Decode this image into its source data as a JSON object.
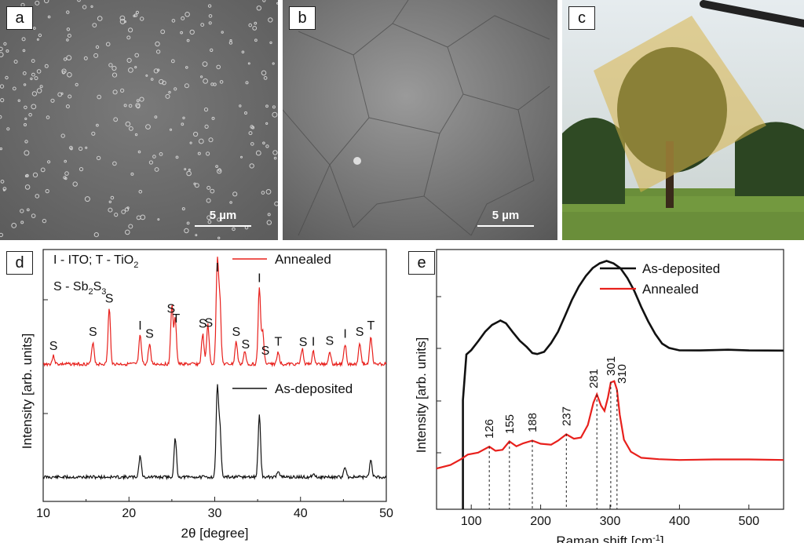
{
  "panels": {
    "a": {
      "label": "a",
      "scale_label": "5 µm"
    },
    "b": {
      "label": "b",
      "scale_label": "5 µm"
    },
    "c": {
      "label": "c"
    },
    "d": {
      "label": "d"
    },
    "e": {
      "label": "e"
    }
  },
  "chart_data": [
    {
      "type": "line",
      "panel": "d",
      "xlabel": "2θ [degree]",
      "ylabel": "Intensity [arb. units]",
      "xlim": [
        10,
        50
      ],
      "xticks": [
        10,
        20,
        30,
        40,
        50
      ],
      "legend_note_lines": [
        "I - ITO; T - TiO2",
        "S - Sb2S3"
      ],
      "series": [
        {
          "name": "Annealed",
          "color": "#e8201c",
          "peaks": [
            [
              11.2,
              0.08
            ],
            [
              15.8,
              0.22
            ],
            [
              17.7,
              0.55
            ],
            [
              21.3,
              0.28
            ],
            [
              22.4,
              0.2
            ],
            [
              25.0,
              0.58
            ],
            [
              25.4,
              0.45
            ],
            [
              28.6,
              0.3
            ],
            [
              29.2,
              0.4
            ],
            [
              30.3,
              1.0
            ],
            [
              30.6,
              0.6
            ],
            [
              32.5,
              0.22
            ],
            [
              33.5,
              0.12
            ],
            [
              35.2,
              0.75
            ],
            [
              35.6,
              0.32
            ],
            [
              37.4,
              0.12
            ],
            [
              40.2,
              0.15
            ],
            [
              41.5,
              0.12
            ],
            [
              43.4,
              0.13
            ],
            [
              45.2,
              0.2
            ],
            [
              46.9,
              0.22
            ],
            [
              48.2,
              0.28
            ]
          ]
        },
        {
          "name": "As-deposited",
          "color": "#111111",
          "peaks": [
            [
              21.3,
              0.25
            ],
            [
              25.4,
              0.45
            ],
            [
              30.3,
              1.0
            ],
            [
              30.6,
              0.55
            ],
            [
              35.2,
              0.72
            ],
            [
              37.4,
              0.08
            ],
            [
              41.5,
              0.05
            ],
            [
              45.2,
              0.12
            ],
            [
              48.2,
              0.2
            ]
          ]
        }
      ],
      "annotations": [
        {
          "text": "S",
          "x": 11.2
        },
        {
          "text": "S",
          "x": 15.8
        },
        {
          "text": "S",
          "x": 17.7
        },
        {
          "text": "I",
          "x": 21.3
        },
        {
          "text": "S",
          "x": 22.4
        },
        {
          "text": "S",
          "x": 24.9
        },
        {
          "text": "T",
          "x": 25.5
        },
        {
          "text": "S",
          "x": 28.6
        },
        {
          "text": "S",
          "x": 29.3
        },
        {
          "text": "I",
          "x": 30.3
        },
        {
          "text": "S",
          "x": 32.5
        },
        {
          "text": "S",
          "x": 33.6
        },
        {
          "text": "I",
          "x": 35.2
        },
        {
          "text": "S",
          "x": 35.9
        },
        {
          "text": "T",
          "x": 37.4
        },
        {
          "text": "S",
          "x": 40.3
        },
        {
          "text": "I",
          "x": 41.5
        },
        {
          "text": "S",
          "x": 43.4
        },
        {
          "text": "I",
          "x": 45.2
        },
        {
          "text": "S",
          "x": 46.9
        },
        {
          "text": "T",
          "x": 48.2
        }
      ]
    },
    {
      "type": "line",
      "panel": "e",
      "xlabel": "Raman shift [cm-1]",
      "ylabel": "Intensity [arb. units]",
      "xlim": [
        50,
        550
      ],
      "xticks": [
        100,
        200,
        300,
        400,
        500
      ],
      "series": [
        {
          "name": "As-deposited",
          "color": "#111111",
          "points": [
            [
              88,
              0.0
            ],
            [
              93,
              0.35
            ],
            [
              100,
              0.38
            ],
            [
              110,
              0.45
            ],
            [
              120,
              0.52
            ],
            [
              130,
              0.57
            ],
            [
              142,
              0.6
            ],
            [
              150,
              0.58
            ],
            [
              160,
              0.52
            ],
            [
              170,
              0.45
            ],
            [
              180,
              0.4
            ],
            [
              188,
              0.36
            ],
            [
              195,
              0.35
            ],
            [
              205,
              0.37
            ],
            [
              215,
              0.43
            ],
            [
              225,
              0.52
            ],
            [
              235,
              0.64
            ],
            [
              245,
              0.76
            ],
            [
              255,
              0.86
            ],
            [
              265,
              0.94
            ],
            [
              275,
              1.0
            ],
            [
              285,
              1.04
            ],
            [
              295,
              1.06
            ],
            [
              305,
              1.04
            ],
            [
              315,
              1.0
            ],
            [
              325,
              0.93
            ],
            [
              335,
              0.83
            ],
            [
              345,
              0.71
            ],
            [
              355,
              0.6
            ],
            [
              365,
              0.5
            ],
            [
              375,
              0.43
            ],
            [
              385,
              0.4
            ],
            [
              400,
              0.38
            ],
            [
              430,
              0.38
            ],
            [
              470,
              0.385
            ],
            [
              500,
              0.38
            ],
            [
              550,
              0.38
            ]
          ]
        },
        {
          "name": "Annealed",
          "color": "#e8201c",
          "points": [
            [
              50,
              0.0
            ],
            [
              70,
              0.02
            ],
            [
              85,
              0.06
            ],
            [
              95,
              0.09
            ],
            [
              110,
              0.1
            ],
            [
              126,
              0.14
            ],
            [
              135,
              0.11
            ],
            [
              145,
              0.12
            ],
            [
              155,
              0.17
            ],
            [
              165,
              0.14
            ],
            [
              175,
              0.16
            ],
            [
              188,
              0.18
            ],
            [
              200,
              0.16
            ],
            [
              215,
              0.15
            ],
            [
              225,
              0.18
            ],
            [
              237,
              0.22
            ],
            [
              248,
              0.19
            ],
            [
              258,
              0.2
            ],
            [
              268,
              0.28
            ],
            [
              276,
              0.42
            ],
            [
              281,
              0.47
            ],
            [
              287,
              0.4
            ],
            [
              292,
              0.37
            ],
            [
              297,
              0.45
            ],
            [
              301,
              0.55
            ],
            [
              306,
              0.56
            ],
            [
              310,
              0.5
            ],
            [
              314,
              0.34
            ],
            [
              320,
              0.18
            ],
            [
              330,
              0.11
            ],
            [
              345,
              0.07
            ],
            [
              370,
              0.06
            ],
            [
              400,
              0.055
            ],
            [
              450,
              0.055
            ],
            [
              500,
              0.055
            ],
            [
              550,
              0.055
            ]
          ]
        }
      ],
      "peak_labels": [
        "126",
        "155",
        "188",
        "237",
        "281",
        "301",
        "310"
      ],
      "peak_positions": [
        126,
        155,
        188,
        237,
        281,
        301,
        310
      ]
    }
  ]
}
